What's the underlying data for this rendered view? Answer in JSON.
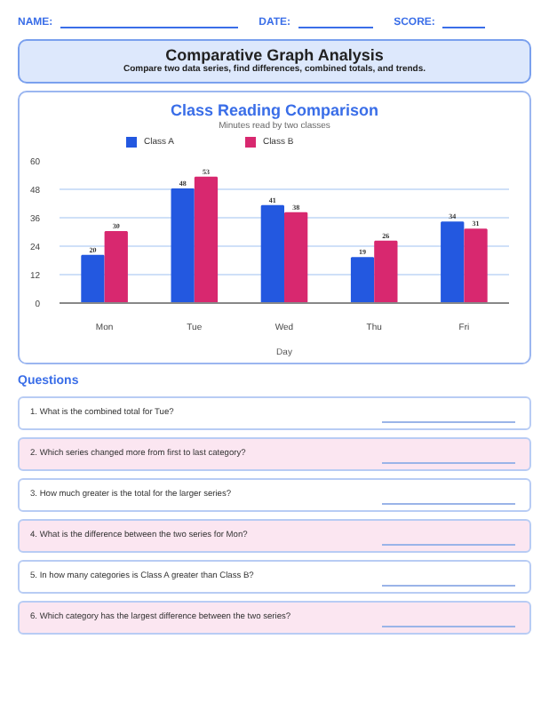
{
  "chart_data": {
    "type": "bar",
    "title": "Class Reading Comparison",
    "subtitle": "Minutes read by two classes",
    "xlabel": "Day",
    "categories": [
      "Mon",
      "Tue",
      "Wed",
      "Thu",
      "Fri"
    ],
    "series": [
      {
        "name": "Class A",
        "color": "#2358e0",
        "values": [
          20,
          48,
          41,
          19,
          34
        ]
      },
      {
        "name": "Class B",
        "color": "#d8286f",
        "values": [
          30,
          53,
          38,
          26,
          31
        ]
      }
    ],
    "ylim": [
      0,
      60
    ],
    "yticks": [
      0,
      12,
      24,
      36,
      48,
      60
    ],
    "grid": "y",
    "legend": "top left",
    "data_labels": true,
    "annotations": [
      "NAME:",
      "DATE:",
      "SCORE:",
      "Comparative Graph Analysis",
      "Compare two data series, find differences, combined totals, and trends.",
      "Questions",
      "1. What is the combined total for Tue?",
      "2. Which series changed more from first to last category?",
      "3. How much greater is the total for the larger series?",
      "4. What is the difference between the two series for Mon?",
      "5. In how many categories is Class A greater than Class B?",
      "6. Which category has the largest difference between the two series?"
    ]
  }
}
